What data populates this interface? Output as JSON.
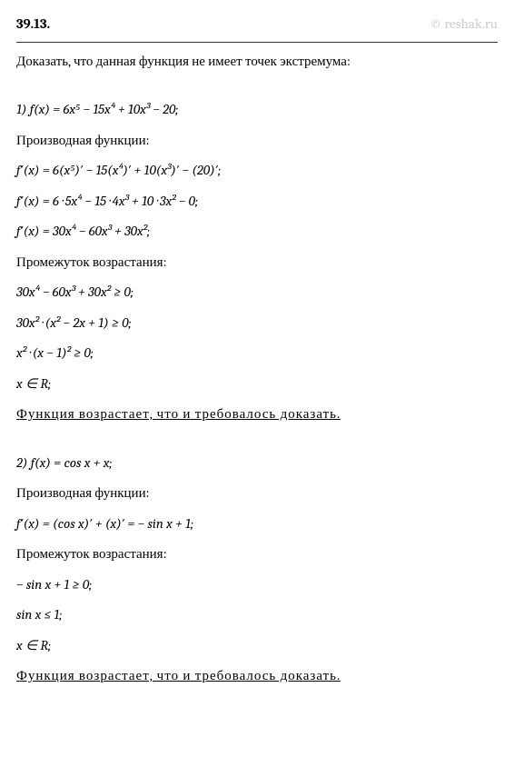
{
  "watermark": "© reshak.ru",
  "problemNumber": "39.13.",
  "prompt": "Доказать, что данная функция не имеет точек экстремума:",
  "part1": {
    "fn": "1) f(x) = 6x⁵ − 15x⁴ + 10x³ − 20;",
    "derivLabel": "Производная функции:",
    "d1": "f′(x) = 6(x⁵)′ − 15(x⁴)′ + 10(x³)′ − (20)′;",
    "d2": "f′(x) = 6 · 5x⁴ − 15 · 4x³ + 10 · 3x² − 0;",
    "d3": "f′(x) = 30x⁴ − 60x³ + 30x²;",
    "intervalLabel": "Промежуток возрастания:",
    "i1": "30x⁴ − 60x³ + 30x² ≥ 0;",
    "i2": "30x² · (x² − 2x + 1) ≥ 0;",
    "i3": "x² · (x − 1)² ≥ 0;",
    "i4": "x ∈ R;",
    "conclusion": "Функция возрастает, что и требовалось доказать."
  },
  "part2": {
    "fn": "2) f(x) = cos x + x;",
    "derivLabel": "Производная функции:",
    "d1": "f′(x) = (cos x)′ + (x)′ = − sin x + 1;",
    "intervalLabel": "Промежуток возрастания:",
    "i1": "− sin x + 1 ≥ 0;",
    "i2": "sin x ≤ 1;",
    "i3": "x ∈ R;",
    "conclusion": "Функция возрастает, что и требовалось доказать."
  },
  "colors": {
    "text": "#000000",
    "watermark": "#cccccc",
    "background": "#ffffff",
    "border": "#333333"
  },
  "fontSize": 15
}
